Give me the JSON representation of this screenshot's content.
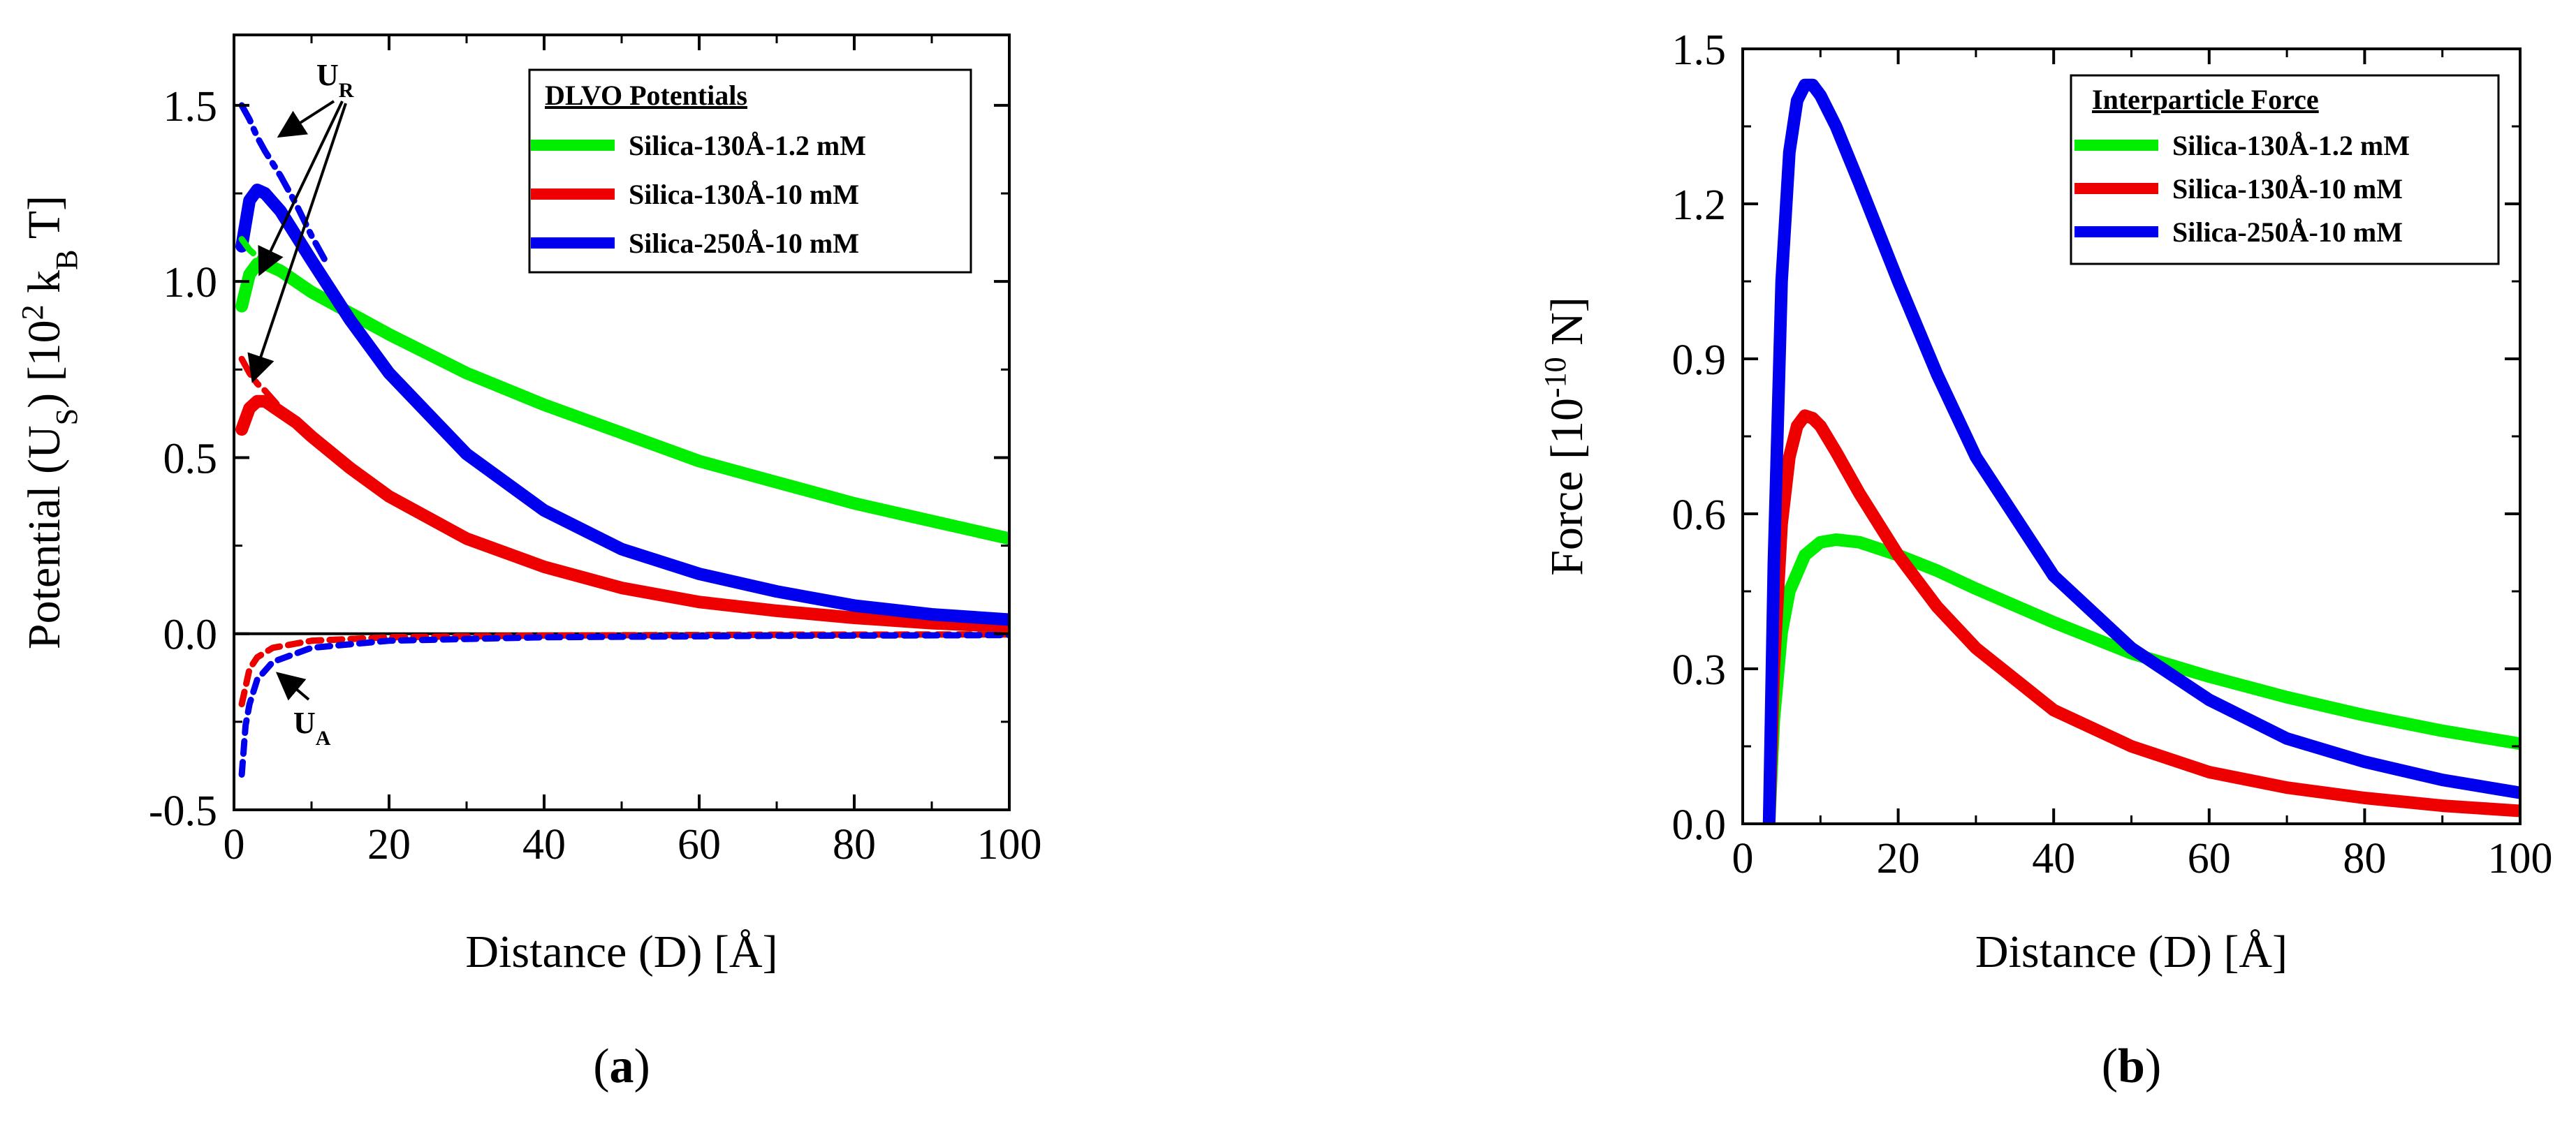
{
  "chart_data": [
    {
      "id": "a",
      "type": "line",
      "panel_label_prefix": "(",
      "panel_label_letter": "a",
      "panel_label_suffix": ")",
      "xlabel": "Distance (D) [Å]",
      "ylabel_main": "Potential (U",
      "ylabel_sub": "S",
      "ylabel_mid": ") [10",
      "ylabel_sup": "2",
      "ylabel_k": " k",
      "ylabel_ksub": "B",
      "ylabel_end": " T]",
      "xlim": [
        0,
        100
      ],
      "ylim": [
        -0.5,
        1.7
      ],
      "xticks": [
        0,
        20,
        40,
        60,
        80,
        100
      ],
      "xtick_labels": [
        "0",
        "20",
        "40",
        "60",
        "80",
        "100"
      ],
      "yticks": [
        -0.5,
        0.0,
        0.5,
        1.0,
        1.5
      ],
      "ytick_labels": [
        "-0.5",
        "0.0",
        "0.5",
        "1.0",
        "1.5"
      ],
      "legend_title": "DLVO Potentials",
      "legend_position": "top-right",
      "zero_line": true,
      "series": [
        {
          "name": "Silica-130Å-1.2 mM",
          "role": "total",
          "color": "#00ee00",
          "style": "solid",
          "x": [
            1,
            2,
            3,
            4,
            6,
            8,
            10,
            15,
            20,
            30,
            40,
            50,
            60,
            70,
            80,
            90,
            100
          ],
          "y": [
            0.93,
            1.02,
            1.05,
            1.05,
            1.03,
            1.0,
            0.97,
            0.91,
            0.85,
            0.74,
            0.65,
            0.57,
            0.49,
            0.43,
            0.37,
            0.32,
            0.27
          ]
        },
        {
          "name": "Silica-130Å-10 mM",
          "role": "total",
          "color": "#ee0000",
          "style": "solid",
          "x": [
            1,
            2,
            3,
            4,
            6,
            8,
            10,
            15,
            20,
            30,
            40,
            50,
            60,
            70,
            80,
            90,
            100
          ],
          "y": [
            0.58,
            0.64,
            0.66,
            0.66,
            0.63,
            0.6,
            0.56,
            0.47,
            0.39,
            0.27,
            0.19,
            0.13,
            0.09,
            0.065,
            0.045,
            0.03,
            0.02
          ]
        },
        {
          "name": "Silica-250Å-10 mM",
          "role": "total",
          "color": "#0000ee",
          "style": "solid",
          "x": [
            1,
            2,
            3,
            4,
            6,
            8,
            10,
            15,
            20,
            30,
            40,
            50,
            60,
            70,
            80,
            90,
            100
          ],
          "y": [
            1.1,
            1.23,
            1.26,
            1.25,
            1.2,
            1.13,
            1.06,
            0.89,
            0.74,
            0.51,
            0.35,
            0.24,
            0.17,
            0.12,
            0.08,
            0.055,
            0.04
          ]
        },
        {
          "name": "U_R Silica-130Å-1.2 mM",
          "role": "repulsive",
          "color": "#00ee00",
          "style": "dashdot",
          "x": [
            1,
            2,
            3,
            4,
            6,
            8,
            10
          ],
          "y": [
            1.12,
            1.09,
            1.07,
            1.06,
            1.03,
            1.0,
            0.97
          ]
        },
        {
          "name": "U_R Silica-130Å-10 mM",
          "role": "repulsive",
          "color": "#ee0000",
          "style": "dashdot",
          "x": [
            1,
            2,
            3,
            4,
            6,
            8,
            10
          ],
          "y": [
            0.78,
            0.74,
            0.71,
            0.69,
            0.64,
            0.6,
            0.56
          ]
        },
        {
          "name": "U_R Silica-250Å-10 mM",
          "role": "repulsive",
          "color": "#0000ee",
          "style": "dashdot",
          "x": [
            1,
            2,
            3,
            4,
            6,
            8,
            10,
            12
          ],
          "y": [
            1.5,
            1.46,
            1.41,
            1.37,
            1.3,
            1.22,
            1.13,
            1.05
          ]
        },
        {
          "name": "U_A Silica-130Å-1.2 mM",
          "role": "attractive",
          "color": "#00ee00",
          "style": "dashed",
          "x": [
            1,
            2,
            3,
            5,
            10,
            20,
            40,
            70,
            100
          ],
          "y": [
            -0.2,
            -0.1,
            -0.067,
            -0.04,
            -0.02,
            -0.01,
            -0.005,
            -0.003,
            -0.002
          ]
        },
        {
          "name": "U_A Silica-130Å-10 mM",
          "role": "attractive",
          "color": "#ee0000",
          "style": "dashed",
          "x": [
            1,
            2,
            3,
            5,
            10,
            20,
            40,
            70,
            100
          ],
          "y": [
            -0.2,
            -0.1,
            -0.067,
            -0.04,
            -0.02,
            -0.01,
            -0.005,
            -0.003,
            -0.002
          ]
        },
        {
          "name": "U_A Silica-250Å-10 mM",
          "role": "attractive",
          "color": "#0000ee",
          "style": "dashed",
          "x": [
            1,
            1.5,
            2,
            3,
            5,
            10,
            20,
            40,
            70,
            100
          ],
          "y": [
            -0.4,
            -0.26,
            -0.2,
            -0.13,
            -0.08,
            -0.04,
            -0.02,
            -0.01,
            -0.006,
            -0.004
          ]
        }
      ],
      "legend_entries": [
        "Silica-130Å-1.2 mM",
        "Silica-130Å-10 mM",
        "Silica-250Å-10 mM"
      ],
      "legend_colors": [
        "#00ee00",
        "#ee0000",
        "#0000ee"
      ],
      "annotations": {
        "ur_label": "U",
        "ur_sub": "R",
        "ua_label": "U",
        "ua_sub": "A"
      }
    },
    {
      "id": "b",
      "type": "line",
      "panel_label_prefix": "(",
      "panel_label_letter": "b",
      "panel_label_suffix": ")",
      "xlabel": "Distance (D) [Å]",
      "ylabel_main": "Force [10",
      "ylabel_sup": "-10",
      "ylabel_end": " N]",
      "xlim": [
        0,
        100
      ],
      "ylim": [
        0,
        1.5
      ],
      "xticks": [
        0,
        20,
        40,
        60,
        80,
        100
      ],
      "xtick_labels": [
        "0",
        "20",
        "40",
        "60",
        "80",
        "100"
      ],
      "yticks": [
        0.0,
        0.3,
        0.6,
        0.9,
        1.2,
        1.5
      ],
      "ytick_labels": [
        "0.0",
        "0.3",
        "0.6",
        "0.9",
        "1.2",
        "1.5"
      ],
      "legend_title": "Interparticle Force",
      "legend_position": "top-right",
      "series": [
        {
          "name": "Silica-130Å-1.2 mM",
          "color": "#00ee00",
          "x": [
            3.4,
            4,
            5,
            6,
            8,
            10,
            12,
            15,
            20,
            25,
            30,
            40,
            50,
            60,
            70,
            80,
            90,
            100
          ],
          "y": [
            0.0,
            0.2,
            0.37,
            0.45,
            0.52,
            0.545,
            0.55,
            0.545,
            0.52,
            0.49,
            0.455,
            0.39,
            0.33,
            0.285,
            0.245,
            0.21,
            0.18,
            0.155
          ]
        },
        {
          "name": "Silica-130Å-10 mM",
          "color": "#ee0000",
          "x": [
            3.4,
            4,
            5,
            6,
            7,
            8,
            9,
            10,
            12,
            15,
            20,
            25,
            30,
            40,
            50,
            60,
            70,
            80,
            90,
            100
          ],
          "y": [
            0.0,
            0.3,
            0.58,
            0.71,
            0.77,
            0.79,
            0.785,
            0.77,
            0.72,
            0.64,
            0.52,
            0.42,
            0.34,
            0.22,
            0.15,
            0.1,
            0.07,
            0.05,
            0.035,
            0.025
          ]
        },
        {
          "name": "Silica-250Å-10 mM",
          "color": "#0000ee",
          "x": [
            3.4,
            4,
            5,
            6,
            7,
            8,
            9,
            10,
            12,
            15,
            20,
            25,
            30,
            40,
            50,
            60,
            70,
            80,
            90,
            100
          ],
          "y": [
            0.0,
            0.5,
            1.05,
            1.3,
            1.4,
            1.43,
            1.43,
            1.41,
            1.35,
            1.24,
            1.05,
            0.87,
            0.71,
            0.48,
            0.34,
            0.24,
            0.165,
            0.12,
            0.085,
            0.06
          ]
        }
      ],
      "legend_entries": [
        "Silica-130Å-1.2 mM",
        "Silica-130Å-10 mM",
        "Silica-250Å-10 mM"
      ],
      "legend_colors": [
        "#00ee00",
        "#ee0000",
        "#0000ee"
      ]
    }
  ]
}
